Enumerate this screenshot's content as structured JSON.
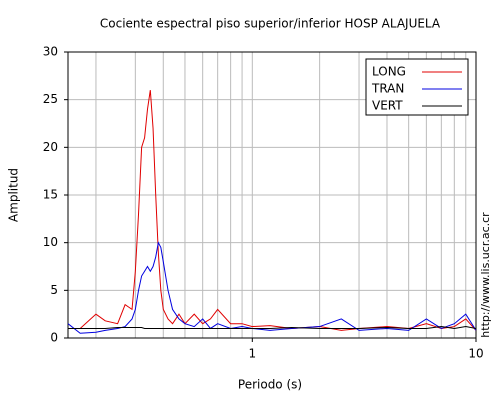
{
  "chart_data": {
    "type": "line",
    "title": "Cociente espectral piso superior/inferior  HOSP ALAJUELA",
    "xlabel": "Periodo (s)",
    "ylabel": "Amplitud",
    "side_text": "http://www.lis.ucr.ac.cr",
    "xscale": "log",
    "grid": true,
    "legend": "upper right",
    "xlim": [
      0.15,
      10
    ],
    "ylim": [
      0,
      30
    ],
    "xticks": [
      1,
      10
    ],
    "yticks": [
      0,
      5,
      10,
      15,
      20,
      25,
      30
    ],
    "x_minor_ticks": [
      0.2,
      0.3,
      0.4,
      0.5,
      0.6,
      0.7,
      0.8,
      0.9,
      2,
      3,
      4,
      5,
      6,
      7,
      8,
      9
    ],
    "x": [
      0.15,
      0.17,
      0.2,
      0.22,
      0.25,
      0.27,
      0.29,
      0.3,
      0.31,
      0.32,
      0.33,
      0.34,
      0.35,
      0.36,
      0.37,
      0.38,
      0.39,
      0.4,
      0.42,
      0.44,
      0.47,
      0.5,
      0.55,
      0.6,
      0.65,
      0.7,
      0.8,
      0.9,
      1,
      1.2,
      1.5,
      2,
      2.5,
      3,
      4,
      5,
      6,
      7,
      8,
      9,
      10
    ],
    "series": [
      {
        "name": "LONG",
        "color": "#e00000",
        "values": [
          1.0,
          1.0,
          2.5,
          1.8,
          1.5,
          3.5,
          3.0,
          7,
          13,
          20,
          21,
          24,
          26,
          22,
          15,
          9,
          5,
          3,
          2,
          1.5,
          2.5,
          1.5,
          2.5,
          1.5,
          2,
          3,
          1.5,
          1.5,
          1.2,
          1.3,
          1.0,
          1.2,
          0.8,
          1.0,
          1.2,
          1.0,
          1.5,
          1.0,
          1.2,
          2.0,
          0.8
        ]
      },
      {
        "name": "TRAN",
        "color": "#0000e0",
        "values": [
          1.5,
          0.5,
          0.6,
          0.8,
          1.0,
          1.2,
          2.0,
          3,
          5,
          6.5,
          7,
          7.5,
          7,
          7.5,
          8.5,
          10,
          9.5,
          8,
          5,
          3,
          2,
          1.5,
          1.2,
          2,
          1.0,
          1.5,
          1.0,
          1.2,
          1.0,
          0.8,
          1.0,
          1.2,
          2.0,
          0.8,
          1.0,
          0.8,
          2.0,
          1.0,
          1.5,
          2.5,
          0.8
        ]
      },
      {
        "name": "VERT",
        "color": "#000000",
        "values": [
          1.0,
          1.0,
          1.0,
          1.0,
          1.1,
          1.1,
          1.1,
          1.1,
          1.1,
          1.1,
          1.0,
          1.0,
          1.0,
          1.0,
          1.0,
          1.0,
          1.0,
          1.0,
          1.0,
          1.0,
          1.0,
          1.0,
          1.0,
          1.0,
          1.0,
          1.0,
          1.0,
          1.0,
          1.0,
          1.0,
          1.1,
          1.0,
          1.0,
          1.0,
          1.1,
          1.0,
          1.0,
          1.2,
          1.0,
          1.2,
          1.0
        ]
      }
    ]
  }
}
